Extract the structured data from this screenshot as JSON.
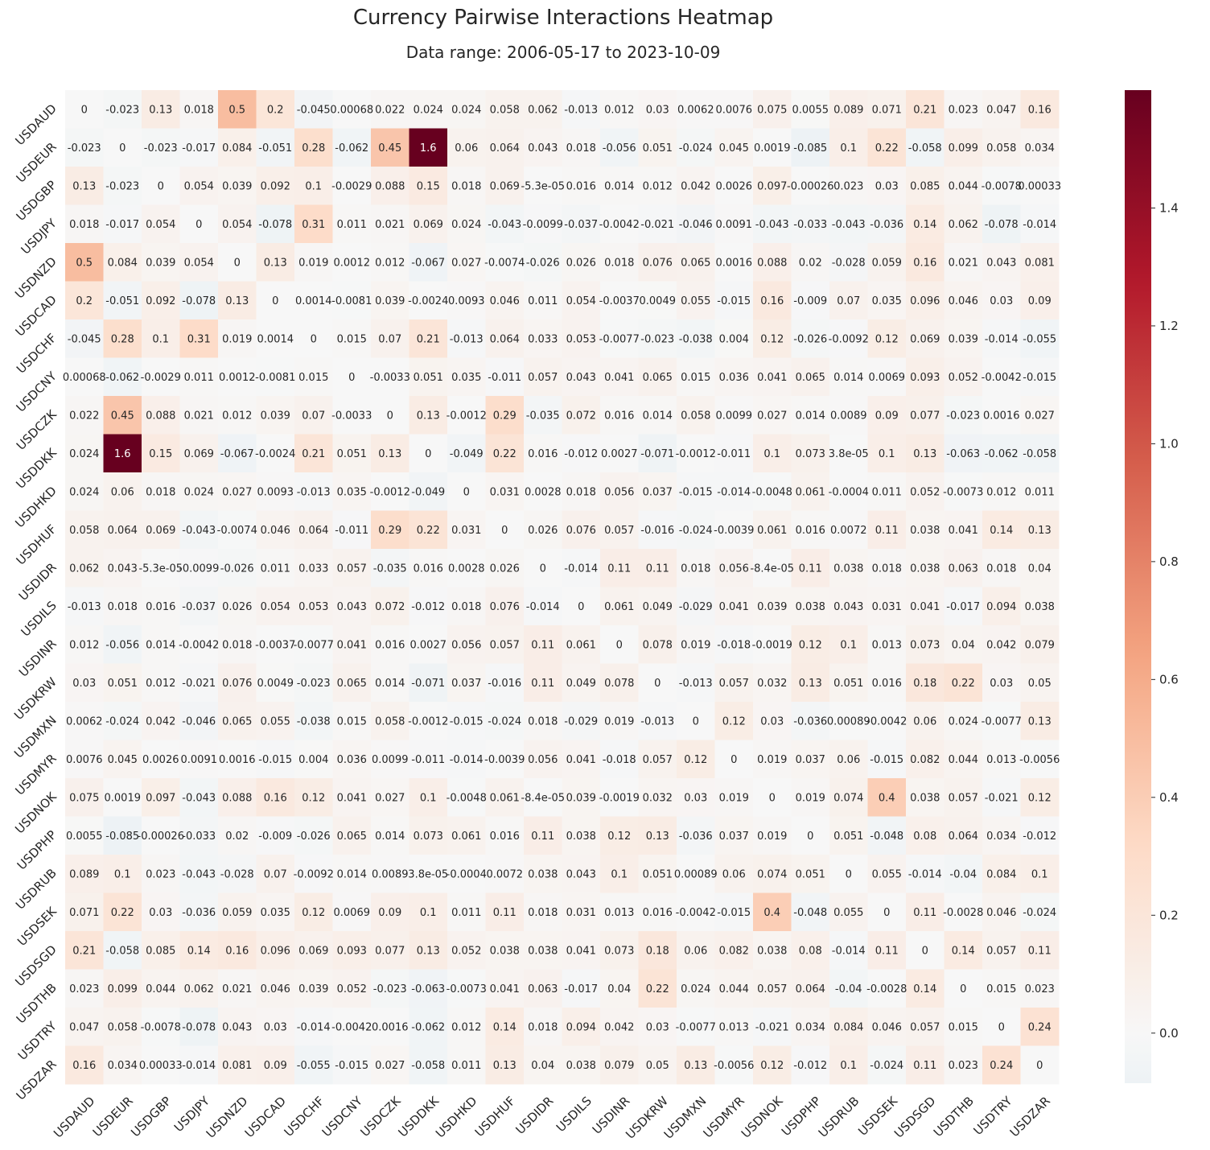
{
  "chart_data": {
    "type": "heatmap",
    "title": "Currency Pairwise Interactions Heatmap",
    "subtitle": "Data range: 2006-05-17 to 2023-10-09",
    "xlabel": "",
    "ylabel": "",
    "categories": [
      "USDAUD",
      "USDEUR",
      "USDGBP",
      "USDJPY",
      "USDNZD",
      "USDCAD",
      "USDCHF",
      "USDCNY",
      "USDCZK",
      "USDDKK",
      "USDHKD",
      "USDHUF",
      "USDIDR",
      "USDILS",
      "USDINR",
      "USDKRW",
      "USDMXN",
      "USDMYR",
      "USDNOK",
      "USDPHP",
      "USDRUB",
      "USDSEK",
      "USDSGD",
      "USDTHB",
      "USDTRY",
      "USDZAR"
    ],
    "values": [
      [
        "0",
        "-0.023",
        "0.13",
        "0.018",
        "0.5",
        "0.2",
        "-0.045",
        "0.00068",
        "0.022",
        "0.024",
        "0.024",
        "0.058",
        "0.062",
        "-0.013",
        "0.012",
        "0.03",
        "0.0062",
        "0.0076",
        "0.075",
        "0.0055",
        "0.089",
        "0.071",
        "0.21",
        "0.023",
        "0.047",
        "0.16"
      ],
      [
        "-0.023",
        "0",
        "-0.023",
        "-0.017",
        "0.084",
        "-0.051",
        "0.28",
        "-0.062",
        "0.45",
        "1.6",
        "0.06",
        "0.064",
        "0.043",
        "0.018",
        "-0.056",
        "0.051",
        "-0.024",
        "0.045",
        "0.0019",
        "-0.085",
        "0.1",
        "0.22",
        "-0.058",
        "0.099",
        "0.058",
        "0.034"
      ],
      [
        "0.13",
        "-0.023",
        "0",
        "0.054",
        "0.039",
        "0.092",
        "0.1",
        "-0.0029",
        "0.088",
        "0.15",
        "0.018",
        "0.069",
        "-5.3e-05",
        "0.016",
        "0.014",
        "0.012",
        "0.042",
        "0.0026",
        "0.097",
        "-0.00026",
        "0.023",
        "0.03",
        "0.085",
        "0.044",
        "-0.0078",
        "0.00033"
      ],
      [
        "0.018",
        "-0.017",
        "0.054",
        "0",
        "0.054",
        "-0.078",
        "0.31",
        "0.011",
        "0.021",
        "0.069",
        "0.024",
        "-0.043",
        "-0.0099",
        "-0.037",
        "-0.0042",
        "-0.021",
        "-0.046",
        "0.0091",
        "-0.043",
        "-0.033",
        "-0.043",
        "-0.036",
        "0.14",
        "0.062",
        "-0.078",
        "-0.014"
      ],
      [
        "0.5",
        "0.084",
        "0.039",
        "0.054",
        "0",
        "0.13",
        "0.019",
        "0.0012",
        "0.012",
        "-0.067",
        "0.027",
        "-0.0074",
        "-0.026",
        "0.026",
        "0.018",
        "0.076",
        "0.065",
        "0.0016",
        "0.088",
        "0.02",
        "-0.028",
        "0.059",
        "0.16",
        "0.021",
        "0.043",
        "0.081"
      ],
      [
        "0.2",
        "-0.051",
        "0.092",
        "-0.078",
        "0.13",
        "0",
        "0.0014",
        "-0.0081",
        "0.039",
        "-0.0024",
        "0.0093",
        "0.046",
        "0.011",
        "0.054",
        "-0.0037",
        "0.0049",
        "0.055",
        "-0.015",
        "0.16",
        "-0.009",
        "0.07",
        "0.035",
        "0.096",
        "0.046",
        "0.03",
        "0.09"
      ],
      [
        "-0.045",
        "0.28",
        "0.1",
        "0.31",
        "0.019",
        "0.0014",
        "0",
        "0.015",
        "0.07",
        "0.21",
        "-0.013",
        "0.064",
        "0.033",
        "0.053",
        "-0.0077",
        "-0.023",
        "-0.038",
        "0.004",
        "0.12",
        "-0.026",
        "-0.0092",
        "0.12",
        "0.069",
        "0.039",
        "-0.014",
        "-0.055"
      ],
      [
        "0.00068",
        "-0.062",
        "-0.0029",
        "0.011",
        "0.0012",
        "-0.0081",
        "0.015",
        "0",
        "-0.0033",
        "0.051",
        "0.035",
        "-0.011",
        "0.057",
        "0.043",
        "0.041",
        "0.065",
        "0.015",
        "0.036",
        "0.041",
        "0.065",
        "0.014",
        "0.0069",
        "0.093",
        "0.052",
        "-0.0042",
        "-0.015"
      ],
      [
        "0.022",
        "0.45",
        "0.088",
        "0.021",
        "0.012",
        "0.039",
        "0.07",
        "-0.0033",
        "0",
        "0.13",
        "-0.0012",
        "0.29",
        "-0.035",
        "0.072",
        "0.016",
        "0.014",
        "0.058",
        "0.0099",
        "0.027",
        "0.014",
        "0.0089",
        "0.09",
        "0.077",
        "-0.023",
        "0.0016",
        "0.027"
      ],
      [
        "0.024",
        "1.6",
        "0.15",
        "0.069",
        "-0.067",
        "-0.0024",
        "0.21",
        "0.051",
        "0.13",
        "0",
        "-0.049",
        "0.22",
        "0.016",
        "-0.012",
        "0.0027",
        "-0.071",
        "-0.0012",
        "-0.011",
        "0.1",
        "0.073",
        "3.8e-05",
        "0.1",
        "0.13",
        "-0.063",
        "-0.062",
        "-0.058"
      ],
      [
        "0.024",
        "0.06",
        "0.018",
        "0.024",
        "0.027",
        "0.0093",
        "-0.013",
        "0.035",
        "-0.0012",
        "-0.049",
        "0",
        "0.031",
        "0.0028",
        "0.018",
        "0.056",
        "0.037",
        "-0.015",
        "-0.014",
        "-0.0048",
        "0.061",
        "-0.0004",
        "0.011",
        "0.052",
        "-0.0073",
        "0.012",
        "0.011"
      ],
      [
        "0.058",
        "0.064",
        "0.069",
        "-0.043",
        "-0.0074",
        "0.046",
        "0.064",
        "-0.011",
        "0.29",
        "0.22",
        "0.031",
        "0",
        "0.026",
        "0.076",
        "0.057",
        "-0.016",
        "-0.024",
        "-0.0039",
        "0.061",
        "0.016",
        "0.0072",
        "0.11",
        "0.038",
        "0.041",
        "0.14",
        "0.13"
      ],
      [
        "0.062",
        "0.043",
        "-5.3e-05",
        "-0.0099",
        "-0.026",
        "0.011",
        "0.033",
        "0.057",
        "-0.035",
        "0.016",
        "0.0028",
        "0.026",
        "0",
        "-0.014",
        "0.11",
        "0.11",
        "0.018",
        "0.056",
        "-8.4e-05",
        "0.11",
        "0.038",
        "0.018",
        "0.038",
        "0.063",
        "0.018",
        "0.04"
      ],
      [
        "-0.013",
        "0.018",
        "0.016",
        "-0.037",
        "0.026",
        "0.054",
        "0.053",
        "0.043",
        "0.072",
        "-0.012",
        "0.018",
        "0.076",
        "-0.014",
        "0",
        "0.061",
        "0.049",
        "-0.029",
        "0.041",
        "0.039",
        "0.038",
        "0.043",
        "0.031",
        "0.041",
        "-0.017",
        "0.094",
        "0.038"
      ],
      [
        "0.012",
        "-0.056",
        "0.014",
        "-0.0042",
        "0.018",
        "-0.0037",
        "-0.0077",
        "0.041",
        "0.016",
        "0.0027",
        "0.056",
        "0.057",
        "0.11",
        "0.061",
        "0",
        "0.078",
        "0.019",
        "-0.018",
        "-0.0019",
        "0.12",
        "0.1",
        "0.013",
        "0.073",
        "0.04",
        "0.042",
        "0.079"
      ],
      [
        "0.03",
        "0.051",
        "0.012",
        "-0.021",
        "0.076",
        "0.0049",
        "-0.023",
        "0.065",
        "0.014",
        "-0.071",
        "0.037",
        "-0.016",
        "0.11",
        "0.049",
        "0.078",
        "0",
        "-0.013",
        "0.057",
        "0.032",
        "0.13",
        "0.051",
        "0.016",
        "0.18",
        "0.22",
        "0.03",
        "0.05"
      ],
      [
        "0.0062",
        "-0.024",
        "0.042",
        "-0.046",
        "0.065",
        "0.055",
        "-0.038",
        "0.015",
        "0.058",
        "-0.0012",
        "-0.015",
        "-0.024",
        "0.018",
        "-0.029",
        "0.019",
        "-0.013",
        "0",
        "0.12",
        "0.03",
        "-0.036",
        "0.00089",
        "-0.0042",
        "0.06",
        "0.024",
        "-0.0077",
        "0.13"
      ],
      [
        "0.0076",
        "0.045",
        "0.0026",
        "0.0091",
        "0.0016",
        "-0.015",
        "0.004",
        "0.036",
        "0.0099",
        "-0.011",
        "-0.014",
        "-0.0039",
        "0.056",
        "0.041",
        "-0.018",
        "0.057",
        "0.12",
        "0",
        "0.019",
        "0.037",
        "0.06",
        "-0.015",
        "0.082",
        "0.044",
        "0.013",
        "-0.0056"
      ],
      [
        "0.075",
        "0.0019",
        "0.097",
        "-0.043",
        "0.088",
        "0.16",
        "0.12",
        "0.041",
        "0.027",
        "0.1",
        "-0.0048",
        "0.061",
        "-8.4e-05",
        "0.039",
        "-0.0019",
        "0.032",
        "0.03",
        "0.019",
        "0",
        "0.019",
        "0.074",
        "0.4",
        "0.038",
        "0.057",
        "-0.021",
        "0.12"
      ],
      [
        "0.0055",
        "-0.085",
        "-0.00026",
        "-0.033",
        "0.02",
        "-0.009",
        "-0.026",
        "0.065",
        "0.014",
        "0.073",
        "0.061",
        "0.016",
        "0.11",
        "0.038",
        "0.12",
        "0.13",
        "-0.036",
        "0.037",
        "0.019",
        "0",
        "0.051",
        "-0.048",
        "0.08",
        "0.064",
        "0.034",
        "-0.012"
      ],
      [
        "0.089",
        "0.1",
        "0.023",
        "-0.043",
        "-0.028",
        "0.07",
        "-0.0092",
        "0.014",
        "0.0089",
        "3.8e-05",
        "-0.0004",
        "0.0072",
        "0.038",
        "0.043",
        "0.1",
        "0.051",
        "0.00089",
        "0.06",
        "0.074",
        "0.051",
        "0",
        "0.055",
        "-0.014",
        "-0.04",
        "0.084",
        "0.1"
      ],
      [
        "0.071",
        "0.22",
        "0.03",
        "-0.036",
        "0.059",
        "0.035",
        "0.12",
        "0.0069",
        "0.09",
        "0.1",
        "0.011",
        "0.11",
        "0.018",
        "0.031",
        "0.013",
        "0.016",
        "-0.0042",
        "-0.015",
        "0.4",
        "-0.048",
        "0.055",
        "0",
        "0.11",
        "-0.0028",
        "0.046",
        "-0.024"
      ],
      [
        "0.21",
        "-0.058",
        "0.085",
        "0.14",
        "0.16",
        "0.096",
        "0.069",
        "0.093",
        "0.077",
        "0.13",
        "0.052",
        "0.038",
        "0.038",
        "0.041",
        "0.073",
        "0.18",
        "0.06",
        "0.082",
        "0.038",
        "0.08",
        "-0.014",
        "0.11",
        "0",
        "0.14",
        "0.057",
        "0.11"
      ],
      [
        "0.023",
        "0.099",
        "0.044",
        "0.062",
        "0.021",
        "0.046",
        "0.039",
        "0.052",
        "-0.023",
        "-0.063",
        "-0.0073",
        "0.041",
        "0.063",
        "-0.017",
        "0.04",
        "0.22",
        "0.024",
        "0.044",
        "0.057",
        "0.064",
        "-0.04",
        "-0.0028",
        "0.14",
        "0",
        "0.015",
        "0.023"
      ],
      [
        "0.047",
        "0.058",
        "-0.0078",
        "-0.078",
        "0.043",
        "0.03",
        "-0.014",
        "-0.0042",
        "0.0016",
        "-0.062",
        "0.012",
        "0.14",
        "0.018",
        "0.094",
        "0.042",
        "0.03",
        "-0.0077",
        "0.013",
        "-0.021",
        "0.034",
        "0.084",
        "0.046",
        "0.057",
        "0.015",
        "0",
        "0.24"
      ],
      [
        "0.16",
        "0.034",
        "0.00033",
        "-0.014",
        "0.081",
        "0.09",
        "-0.055",
        "-0.015",
        "0.027",
        "-0.058",
        "0.011",
        "0.13",
        "0.04",
        "0.038",
        "0.079",
        "0.05",
        "0.13",
        "-0.0056",
        "0.12",
        "-0.012",
        "0.1",
        "-0.024",
        "0.11",
        "0.023",
        "0.24",
        "0"
      ]
    ],
    "colorbar": {
      "ticks": [
        "0.0",
        "0.2",
        "0.4",
        "0.6",
        "0.8",
        "1.0",
        "1.2",
        "1.4"
      ],
      "range": [
        -0.085,
        1.6
      ]
    },
    "colormap": [
      "#053061",
      "#2166ac",
      "#4393c3",
      "#92c5de",
      "#d1e5f0",
      "#f7f7f7",
      "#fddbc7",
      "#f4a582",
      "#d6604d",
      "#b2182b",
      "#67001f"
    ],
    "grid": false,
    "legend": "colorbar-right"
  }
}
